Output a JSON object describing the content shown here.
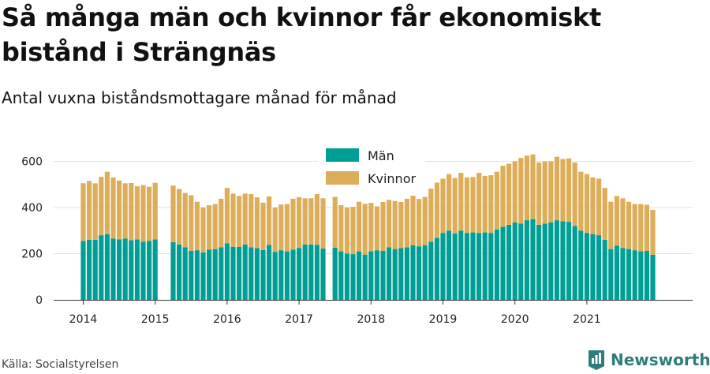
{
  "title": "Så många män och kvinnor får ekonomiskt bistånd i Strängnäs",
  "subtitle": "Antal vuxna biståndsmottagare månad för månad",
  "source": "Källa: Socialstyrelsen",
  "brand": "Newsworthy",
  "colors": {
    "man": "#009e94",
    "kvinnor": "#ddae5a",
    "brand": "#2d7e7a"
  },
  "chart_data": {
    "type": "bar",
    "stacked": true,
    "y_ticks": [
      0,
      200,
      400,
      600
    ],
    "ylim": [
      0,
      700
    ],
    "x_tick_labels": [
      "2014",
      "2015",
      "2016",
      "2017",
      "2018",
      "2019",
      "2020",
      "2021"
    ],
    "legend_position": "top-center",
    "grid": "horizontal",
    "series": [
      {
        "name": "Män",
        "values": [
          255,
          260,
          260,
          280,
          285,
          265,
          262,
          265,
          258,
          262,
          252,
          255,
          262,
          null,
          null,
          250,
          240,
          228,
          213,
          215,
          205,
          218,
          220,
          228,
          245,
          230,
          230,
          240,
          228,
          224,
          216,
          238,
          208,
          215,
          210,
          218,
          225,
          240,
          240,
          238,
          222,
          null,
          226,
          210,
          200,
          198,
          210,
          196,
          210,
          215,
          212,
          228,
          220,
          224,
          228,
          236,
          232,
          236,
          252,
          268,
          290,
          300,
          288,
          300,
          290,
          292,
          290,
          292,
          290,
          305,
          316,
          325,
          335,
          330,
          345,
          350,
          325,
          330,
          335,
          345,
          340,
          338,
          320,
          300,
          290,
          285,
          280,
          260,
          220,
          235,
          225,
          220,
          215,
          210,
          212,
          195
        ]
      },
      {
        "name": "Kvinnor",
        "values": [
          250,
          255,
          245,
          253,
          270,
          265,
          255,
          240,
          248,
          230,
          245,
          235,
          245,
          null,
          null,
          245,
          240,
          235,
          240,
          210,
          195,
          192,
          195,
          210,
          240,
          230,
          220,
          220,
          230,
          220,
          205,
          210,
          192,
          198,
          205,
          220,
          220,
          200,
          200,
          220,
          218,
          null,
          220,
          200,
          200,
          205,
          215,
          220,
          210,
          190,
          212,
          205,
          208,
          200,
          210,
          215,
          205,
          210,
          230,
          240,
          235,
          245,
          240,
          250,
          240,
          240,
          260,
          245,
          250,
          250,
          265,
          265,
          265,
          285,
          280,
          280,
          270,
          270,
          265,
          275,
          270,
          275,
          275,
          255,
          255,
          245,
          245,
          225,
          205,
          215,
          215,
          205,
          200,
          205,
          200,
          195
        ]
      }
    ]
  }
}
